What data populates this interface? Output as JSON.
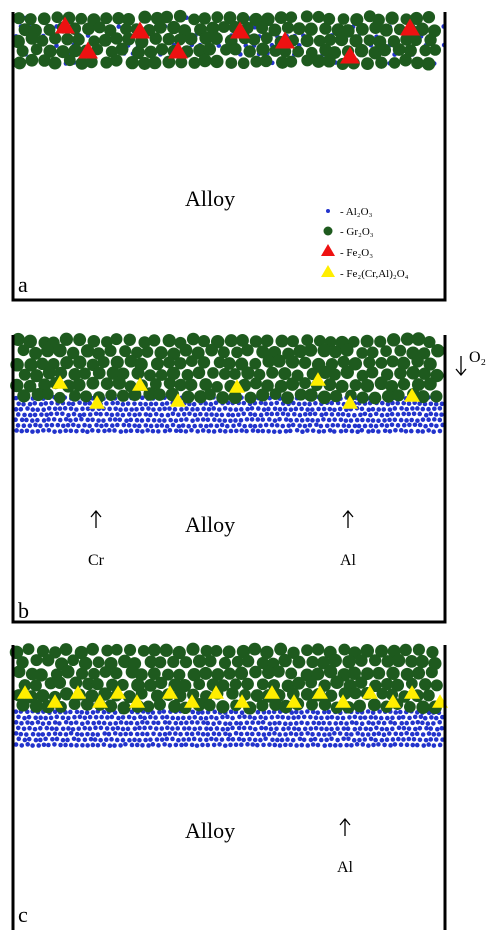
{
  "panels": [
    {
      "label": "a",
      "alloy": "Alloy",
      "legend": [
        "- Al₂O₃",
        "- Gr₂O₃",
        "- Fe₂O₃",
        "- Fe₂(Cr,Al)₂O₄"
      ]
    },
    {
      "label": "b",
      "alloy": "Alloy",
      "arrows": [
        "Cr",
        "Al"
      ],
      "oxygen": "O₂"
    },
    {
      "label": "c",
      "alloy": "Alloy",
      "arrows": [
        "Al"
      ]
    }
  ]
}
